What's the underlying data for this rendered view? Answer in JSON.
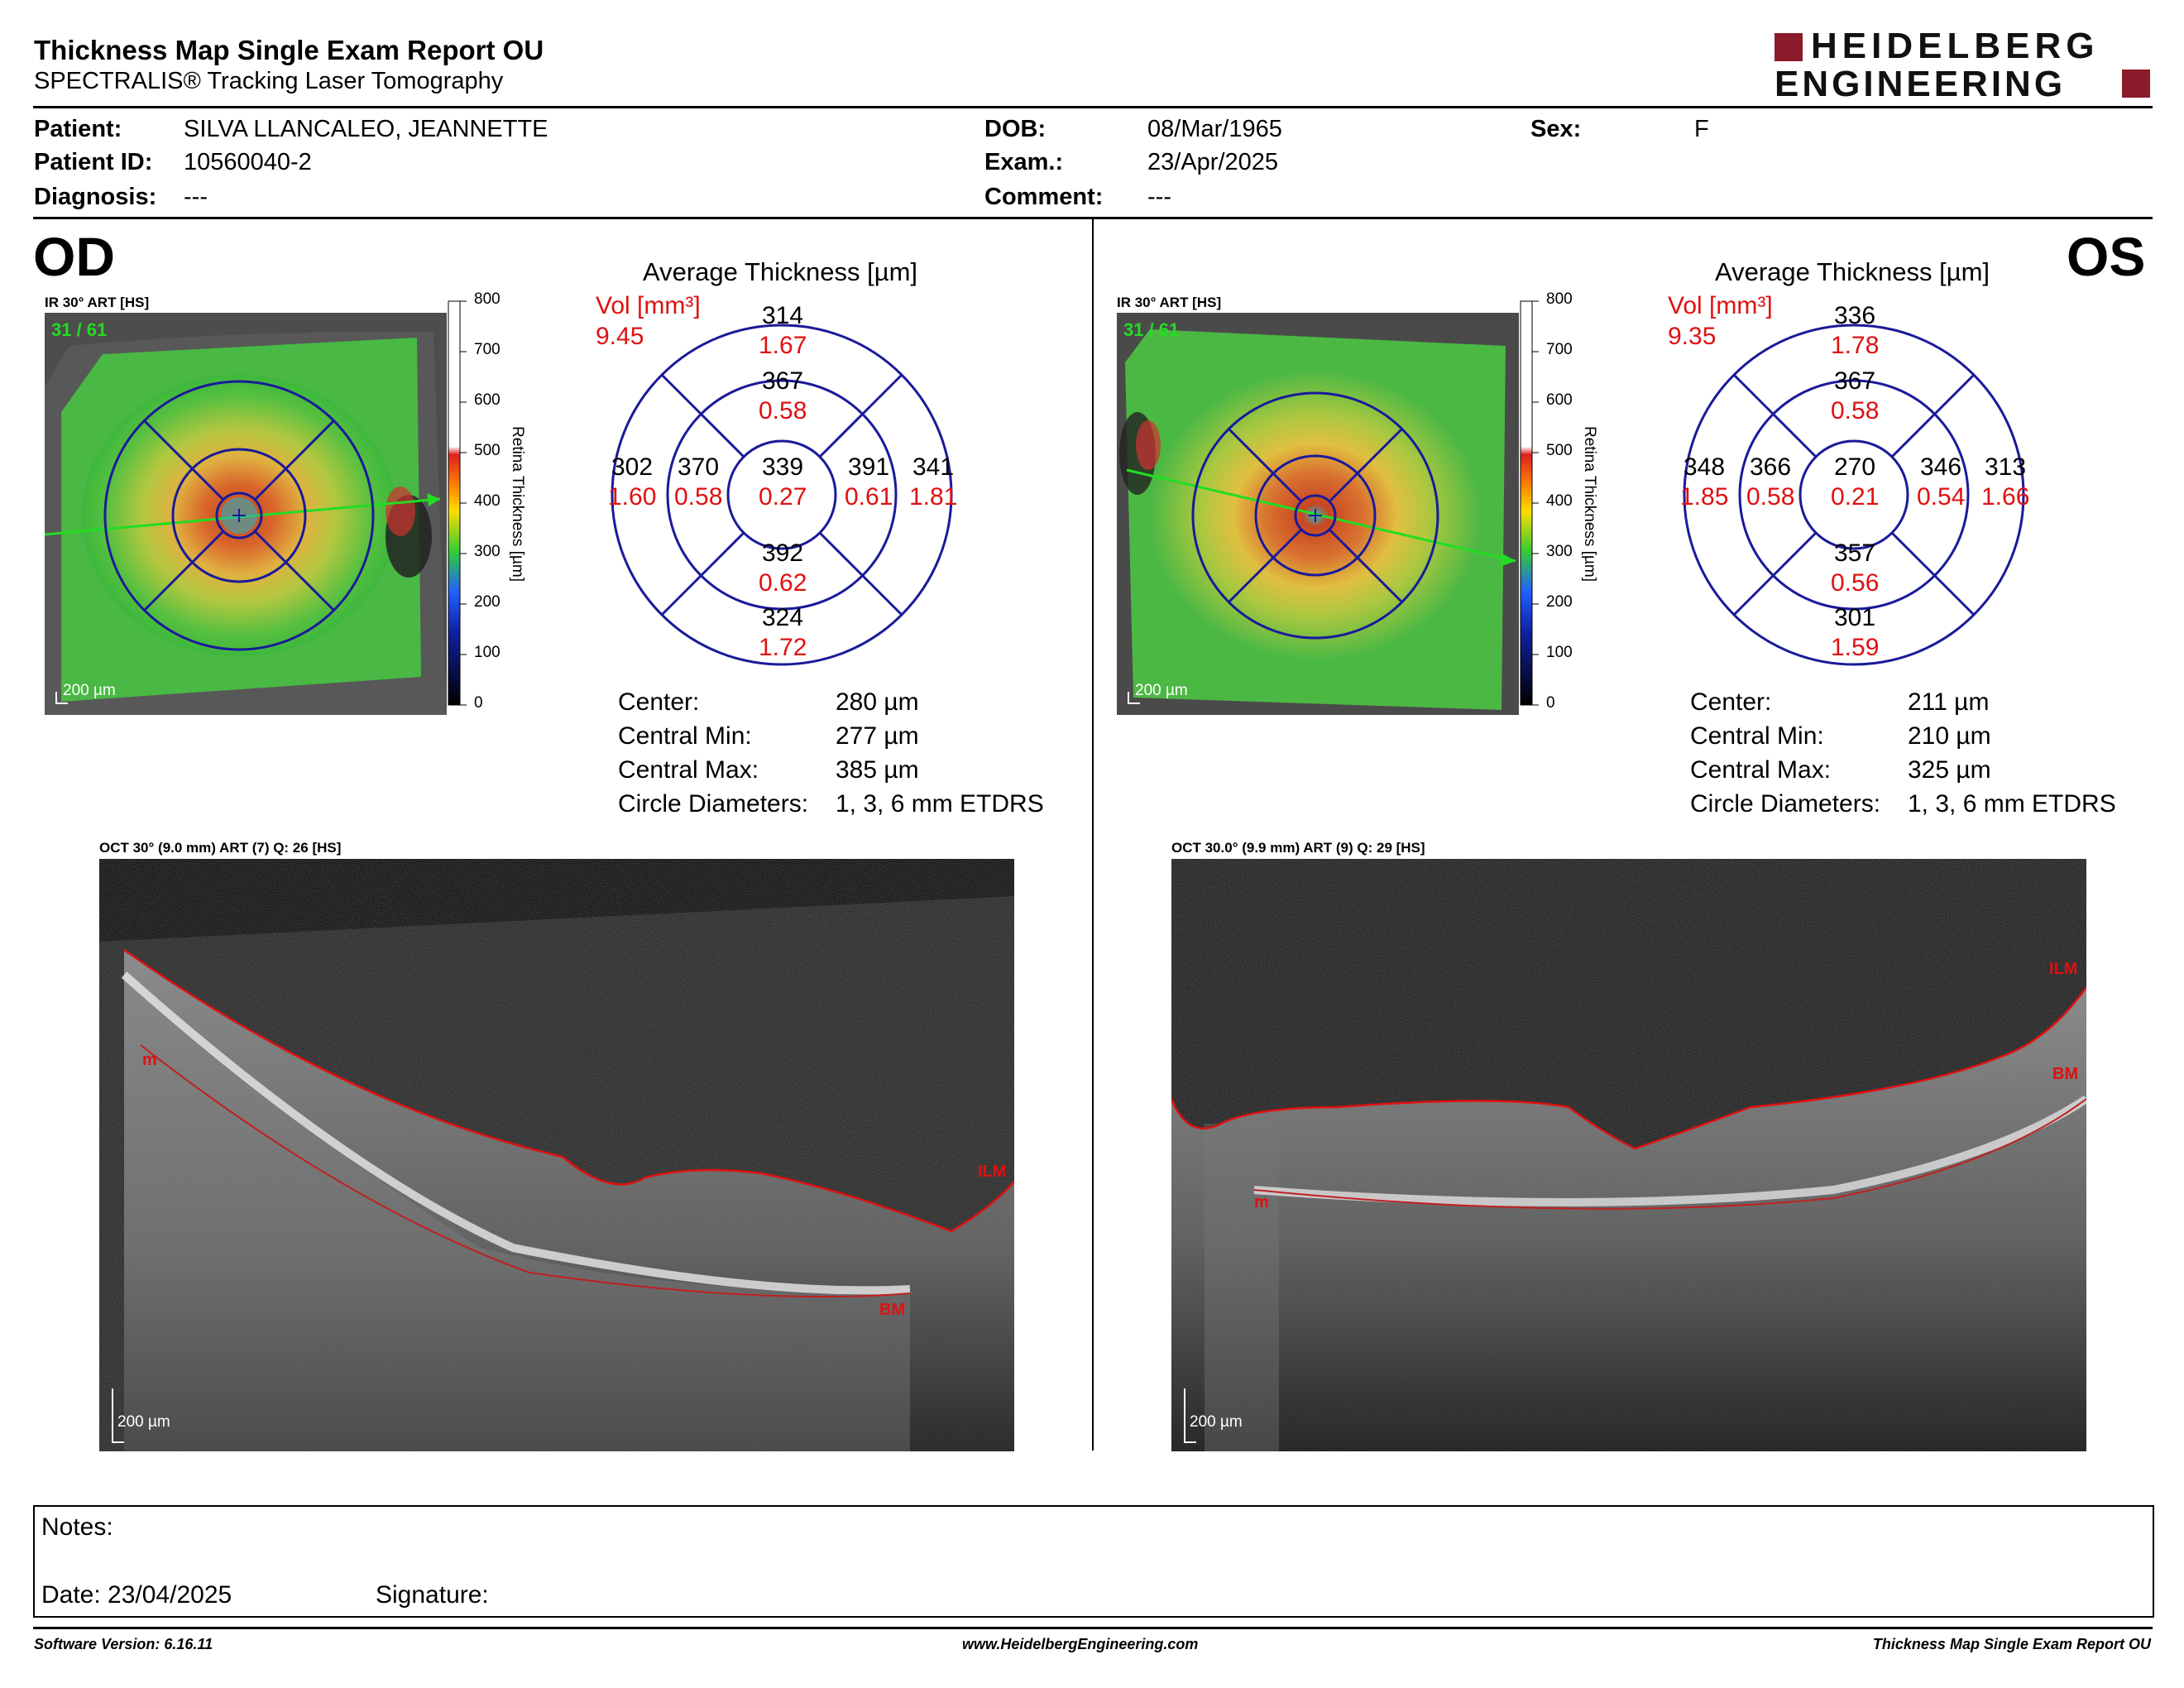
{
  "header": {
    "title": "Thickness Map Single Exam Report OU",
    "subtitle": "SPECTRALIS® Tracking Laser Tomography",
    "logo_line1": "HEIDELBERG",
    "logo_line2": "ENGINEERING",
    "logo_color": "#8b1a2b"
  },
  "patient": {
    "patient_label": "Patient:",
    "patient_value": "SILVA LLANCALEO, JEANNETTE",
    "id_label": "Patient ID:",
    "id_value": "10560040-2",
    "diagnosis_label": "Diagnosis:",
    "diagnosis_value": "---",
    "dob_label": "DOB:",
    "dob_value": "08/Mar/1965",
    "exam_label": "Exam.:",
    "exam_value": "23/Apr/2025",
    "comment_label": "Comment:",
    "comment_value": "---",
    "sex_label": "Sex:",
    "sex_value": "F"
  },
  "od": {
    "eye": "OD",
    "ir_caption": "IR 30° ART [HS]",
    "frame_counter": "31 / 61",
    "scale_bar": "200 µm",
    "colorbar_ticks": [
      "800",
      "700",
      "600",
      "500",
      "400",
      "300",
      "200",
      "100",
      "0"
    ],
    "colorbar_label": "Retina  Thickness [µm]",
    "avg_title": "Average Thickness [µm]",
    "vol_label": "Vol [mm³]",
    "vol_total": "9.45",
    "sectors": {
      "center": {
        "t": "339",
        "v": "0.27"
      },
      "inner_sup": {
        "t": "367",
        "v": "0.58"
      },
      "inner_inf": {
        "t": "392",
        "v": "0.62"
      },
      "inner_left": {
        "t": "370",
        "v": "0.58"
      },
      "inner_right": {
        "t": "391",
        "v": "0.61"
      },
      "outer_sup": {
        "t": "314",
        "v": "1.67"
      },
      "outer_inf": {
        "t": "324",
        "v": "1.72"
      },
      "outer_left": {
        "t": "302",
        "v": "1.60"
      },
      "outer_right": {
        "t": "341",
        "v": "1.81"
      }
    },
    "stats": [
      {
        "label": "Center:",
        "value": "280 µm"
      },
      {
        "label": "Central Min:",
        "value": "277 µm"
      },
      {
        "label": "Central Max:",
        "value": "385 µm"
      },
      {
        "label": "Circle Diameters:",
        "value": "1, 3, 6 mm ETDRS"
      }
    ],
    "oct_caption": "OCT 30° (9.0 mm) ART (7) Q: 26 [HS]",
    "oct_scale": "200 µm",
    "ilm": "ILM",
    "bm": "BM",
    "m": "m"
  },
  "os": {
    "eye": "OS",
    "ir_caption": "IR 30° ART [HS]",
    "frame_counter": "31 / 61",
    "scale_bar": "200 µm",
    "colorbar_ticks": [
      "800",
      "700",
      "600",
      "500",
      "400",
      "300",
      "200",
      "100",
      "0"
    ],
    "colorbar_label": "Retina  Thickness [µm]",
    "avg_title": "Average Thickness [µm]",
    "vol_label": "Vol [mm³]",
    "vol_total": "9.35",
    "sectors": {
      "center": {
        "t": "270",
        "v": "0.21"
      },
      "inner_sup": {
        "t": "367",
        "v": "0.58"
      },
      "inner_inf": {
        "t": "357",
        "v": "0.56"
      },
      "inner_left": {
        "t": "366",
        "v": "0.58"
      },
      "inner_right": {
        "t": "346",
        "v": "0.54"
      },
      "outer_sup": {
        "t": "336",
        "v": "1.78"
      },
      "outer_inf": {
        "t": "301",
        "v": "1.59"
      },
      "outer_left": {
        "t": "348",
        "v": "1.85"
      },
      "outer_right": {
        "t": "313",
        "v": "1.66"
      }
    },
    "stats": [
      {
        "label": "Center:",
        "value": "211 µm"
      },
      {
        "label": "Central Min:",
        "value": "210 µm"
      },
      {
        "label": "Central Max:",
        "value": "325 µm"
      },
      {
        "label": "Circle Diameters:",
        "value": "1, 3, 6 mm ETDRS"
      }
    ],
    "oct_caption": "OCT 30.0° (9.9 mm) ART (9) Q: 29 [HS]",
    "oct_scale": "200 µm",
    "ilm": "ILM",
    "bm": "BM",
    "m": "m"
  },
  "notes": {
    "notes_label": "Notes:",
    "date_label": "Date: 23/04/2025",
    "signature_label": "Signature:"
  },
  "footer": {
    "left": "Software Version: 6.16.11",
    "center": "www.HeidelbergEngineering.com",
    "right": "Thickness Map Single Exam Report OU"
  },
  "colors": {
    "volume_red": "#e01010",
    "grid_blue": "#1a1a9a",
    "scan_green": "#22dd22",
    "layer_red": "#e01010"
  }
}
